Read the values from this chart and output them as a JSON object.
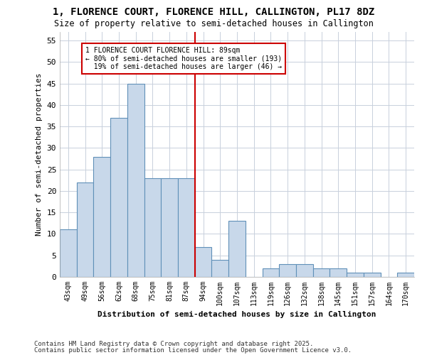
{
  "title_line1": "1, FLORENCE COURT, FLORENCE HILL, CALLINGTON, PL17 8DZ",
  "title_line2": "Size of property relative to semi-detached houses in Callington",
  "xlabel": "Distribution of semi-detached houses by size in Callington",
  "ylabel": "Number of semi-detached properties",
  "bar_labels": [
    "43sqm",
    "49sqm",
    "56sqm",
    "62sqm",
    "68sqm",
    "75sqm",
    "81sqm",
    "87sqm",
    "94sqm",
    "100sqm",
    "107sqm",
    "113sqm",
    "119sqm",
    "126sqm",
    "132sqm",
    "138sqm",
    "145sqm",
    "151sqm",
    "157sqm",
    "164sqm",
    "170sqm"
  ],
  "bar_values": [
    11,
    22,
    28,
    37,
    45,
    23,
    23,
    23,
    7,
    4,
    13,
    0,
    2,
    3,
    3,
    2,
    2,
    1,
    1,
    0,
    1
  ],
  "bar_color": "#c8d8ea",
  "bar_edge_color": "#6090b8",
  "property_line_label": "1 FLORENCE COURT FLORENCE HILL: 89sqm",
  "smaller_pct": 80,
  "smaller_n": 193,
  "larger_pct": 19,
  "larger_n": 46,
  "annotation_box_color": "#cc0000",
  "ylim": [
    0,
    57
  ],
  "yticks": [
    0,
    5,
    10,
    15,
    20,
    25,
    30,
    35,
    40,
    45,
    50,
    55
  ],
  "footnote_line1": "Contains HM Land Registry data © Crown copyright and database right 2025.",
  "footnote_line2": "Contains public sector information licensed under the Open Government Licence v3.0.",
  "bg_color": "#ffffff",
  "grid_color": "#c8d0dc"
}
